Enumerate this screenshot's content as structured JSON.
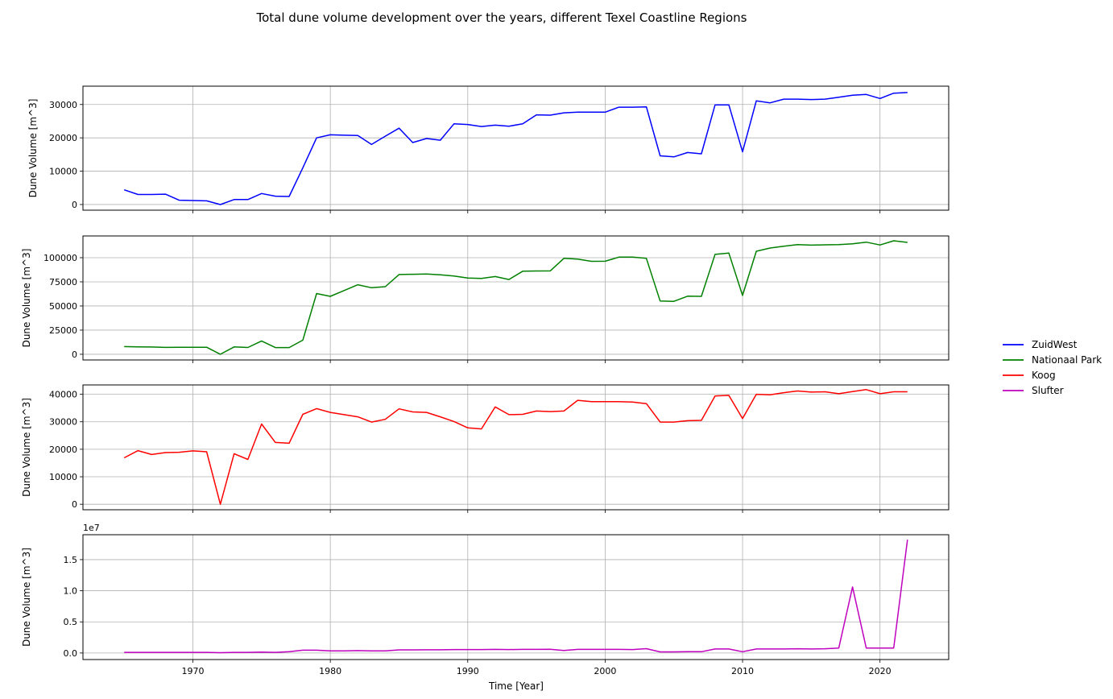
{
  "chart_data": {
    "type": "line",
    "title": "Total dune volume development over the years, different Texel Coastline Regions",
    "xlabel": "Time [Year]",
    "xlim": [
      1962,
      2025
    ],
    "xticks": [
      1970,
      1980,
      1990,
      2000,
      2010,
      2020
    ],
    "x": [
      1965,
      1966,
      1967,
      1968,
      1969,
      1970,
      1971,
      1972,
      1973,
      1974,
      1975,
      1976,
      1977,
      1978,
      1979,
      1980,
      1981,
      1982,
      1983,
      1984,
      1985,
      1986,
      1987,
      1988,
      1989,
      1990,
      1991,
      1992,
      1993,
      1994,
      1995,
      1996,
      1997,
      1998,
      1999,
      2000,
      2001,
      2002,
      2003,
      2004,
      2005,
      2006,
      2007,
      2008,
      2009,
      2010,
      2011,
      2012,
      2013,
      2014,
      2015,
      2016,
      2017,
      2018,
      2019,
      2020,
      2021,
      2022
    ],
    "legend_position": "right",
    "grid": true,
    "panels": [
      {
        "name": "ZuidWest",
        "color": "#0000ff",
        "ylabel": "Dune Volume [m^3]",
        "ylim": [
          -1700,
          35500
        ],
        "yticks": [
          0,
          10000,
          20000,
          30000
        ],
        "ytick_labels": [
          "0",
          "10000",
          "20000",
          "30000"
        ],
        "offset_label": "",
        "values": [
          4400,
          3000,
          3000,
          3100,
          1300,
          1200,
          1100,
          0,
          1500,
          1500,
          3300,
          2500,
          2400,
          11000,
          20000,
          20900,
          20800,
          20700,
          18000,
          20500,
          22900,
          18600,
          19800,
          19300,
          24200,
          24000,
          23400,
          23800,
          23500,
          24200,
          26900,
          26800,
          27500,
          27700,
          27700,
          27700,
          29200,
          29200,
          29300,
          14600,
          14300,
          15600,
          15200,
          29900,
          29900,
          15800,
          31100,
          30500,
          31600,
          31600,
          31500,
          31600,
          32200,
          32800,
          33000,
          31800,
          33400,
          33600
        ]
      },
      {
        "name": "Nationaal Park",
        "color": "#008000",
        "ylabel": "Dune Volume [m^3]",
        "ylim": [
          -5900,
          122500
        ],
        "yticks": [
          0,
          25000,
          50000,
          75000,
          100000
        ],
        "ytick_labels": [
          "0",
          "25000",
          "50000",
          "75000",
          "100000"
        ],
        "offset_label": "",
        "values": [
          7900,
          7700,
          7500,
          7100,
          7200,
          7300,
          7300,
          0,
          7600,
          7000,
          13800,
          6900,
          6900,
          14600,
          62900,
          60000,
          66000,
          72000,
          68900,
          70000,
          82600,
          82800,
          83100,
          82200,
          81000,
          78900,
          78600,
          80500,
          77400,
          86000,
          86200,
          86300,
          99300,
          98500,
          96200,
          96300,
          100600,
          100600,
          99300,
          55100,
          54800,
          60100,
          60000,
          103500,
          104800,
          60900,
          106700,
          110000,
          111800,
          113600,
          113000,
          113300,
          113500,
          114400,
          116100,
          113200,
          117500,
          115800
        ]
      },
      {
        "name": "Koog",
        "color": "#ff0000",
        "ylabel": "Dune Volume [m^3]",
        "ylim": [
          -2000,
          43400
        ],
        "yticks": [
          0,
          10000,
          20000,
          30000,
          40000
        ],
        "ytick_labels": [
          "0",
          "10000",
          "20000",
          "30000",
          "40000"
        ],
        "offset_label": "",
        "values": [
          16900,
          19500,
          18100,
          18800,
          18900,
          19400,
          19100,
          0,
          18400,
          16300,
          29200,
          22500,
          22200,
          32700,
          34800,
          33400,
          32600,
          31800,
          29900,
          30900,
          34700,
          33600,
          33400,
          31800,
          30100,
          27800,
          27400,
          35400,
          32600,
          32700,
          33900,
          33700,
          33900,
          37800,
          37300,
          37300,
          37300,
          37200,
          36600,
          29900,
          29900,
          30400,
          30500,
          39400,
          39600,
          31200,
          40000,
          39800,
          40600,
          41200,
          40800,
          40900,
          40200,
          41000,
          41700,
          40200,
          40900,
          40900
        ]
      },
      {
        "name": "Slufter",
        "color": "#bf00bf",
        "ylabel": "Dune Volume [m^3]",
        "ylim": [
          -1050000,
          19000000
        ],
        "yticks": [
          0,
          5000000,
          10000000,
          15000000
        ],
        "ytick_labels": [
          "0.0",
          "0.5",
          "1.0",
          "1.5"
        ],
        "offset_label": "1e7",
        "values": [
          100000,
          100000,
          100000,
          100000,
          100000,
          100000,
          100000,
          50000,
          100000,
          100000,
          150000,
          100000,
          200000,
          450000,
          450000,
          350000,
          350000,
          380000,
          350000,
          350000,
          500000,
          500000,
          520000,
          520000,
          550000,
          550000,
          560000,
          580000,
          550000,
          580000,
          580000,
          600000,
          400000,
          580000,
          580000,
          580000,
          580000,
          550000,
          700000,
          180000,
          180000,
          200000,
          200000,
          650000,
          650000,
          200000,
          650000,
          650000,
          650000,
          680000,
          650000,
          680000,
          800000,
          10600000,
          800000,
          800000,
          800000,
          18200000
        ]
      }
    ]
  }
}
